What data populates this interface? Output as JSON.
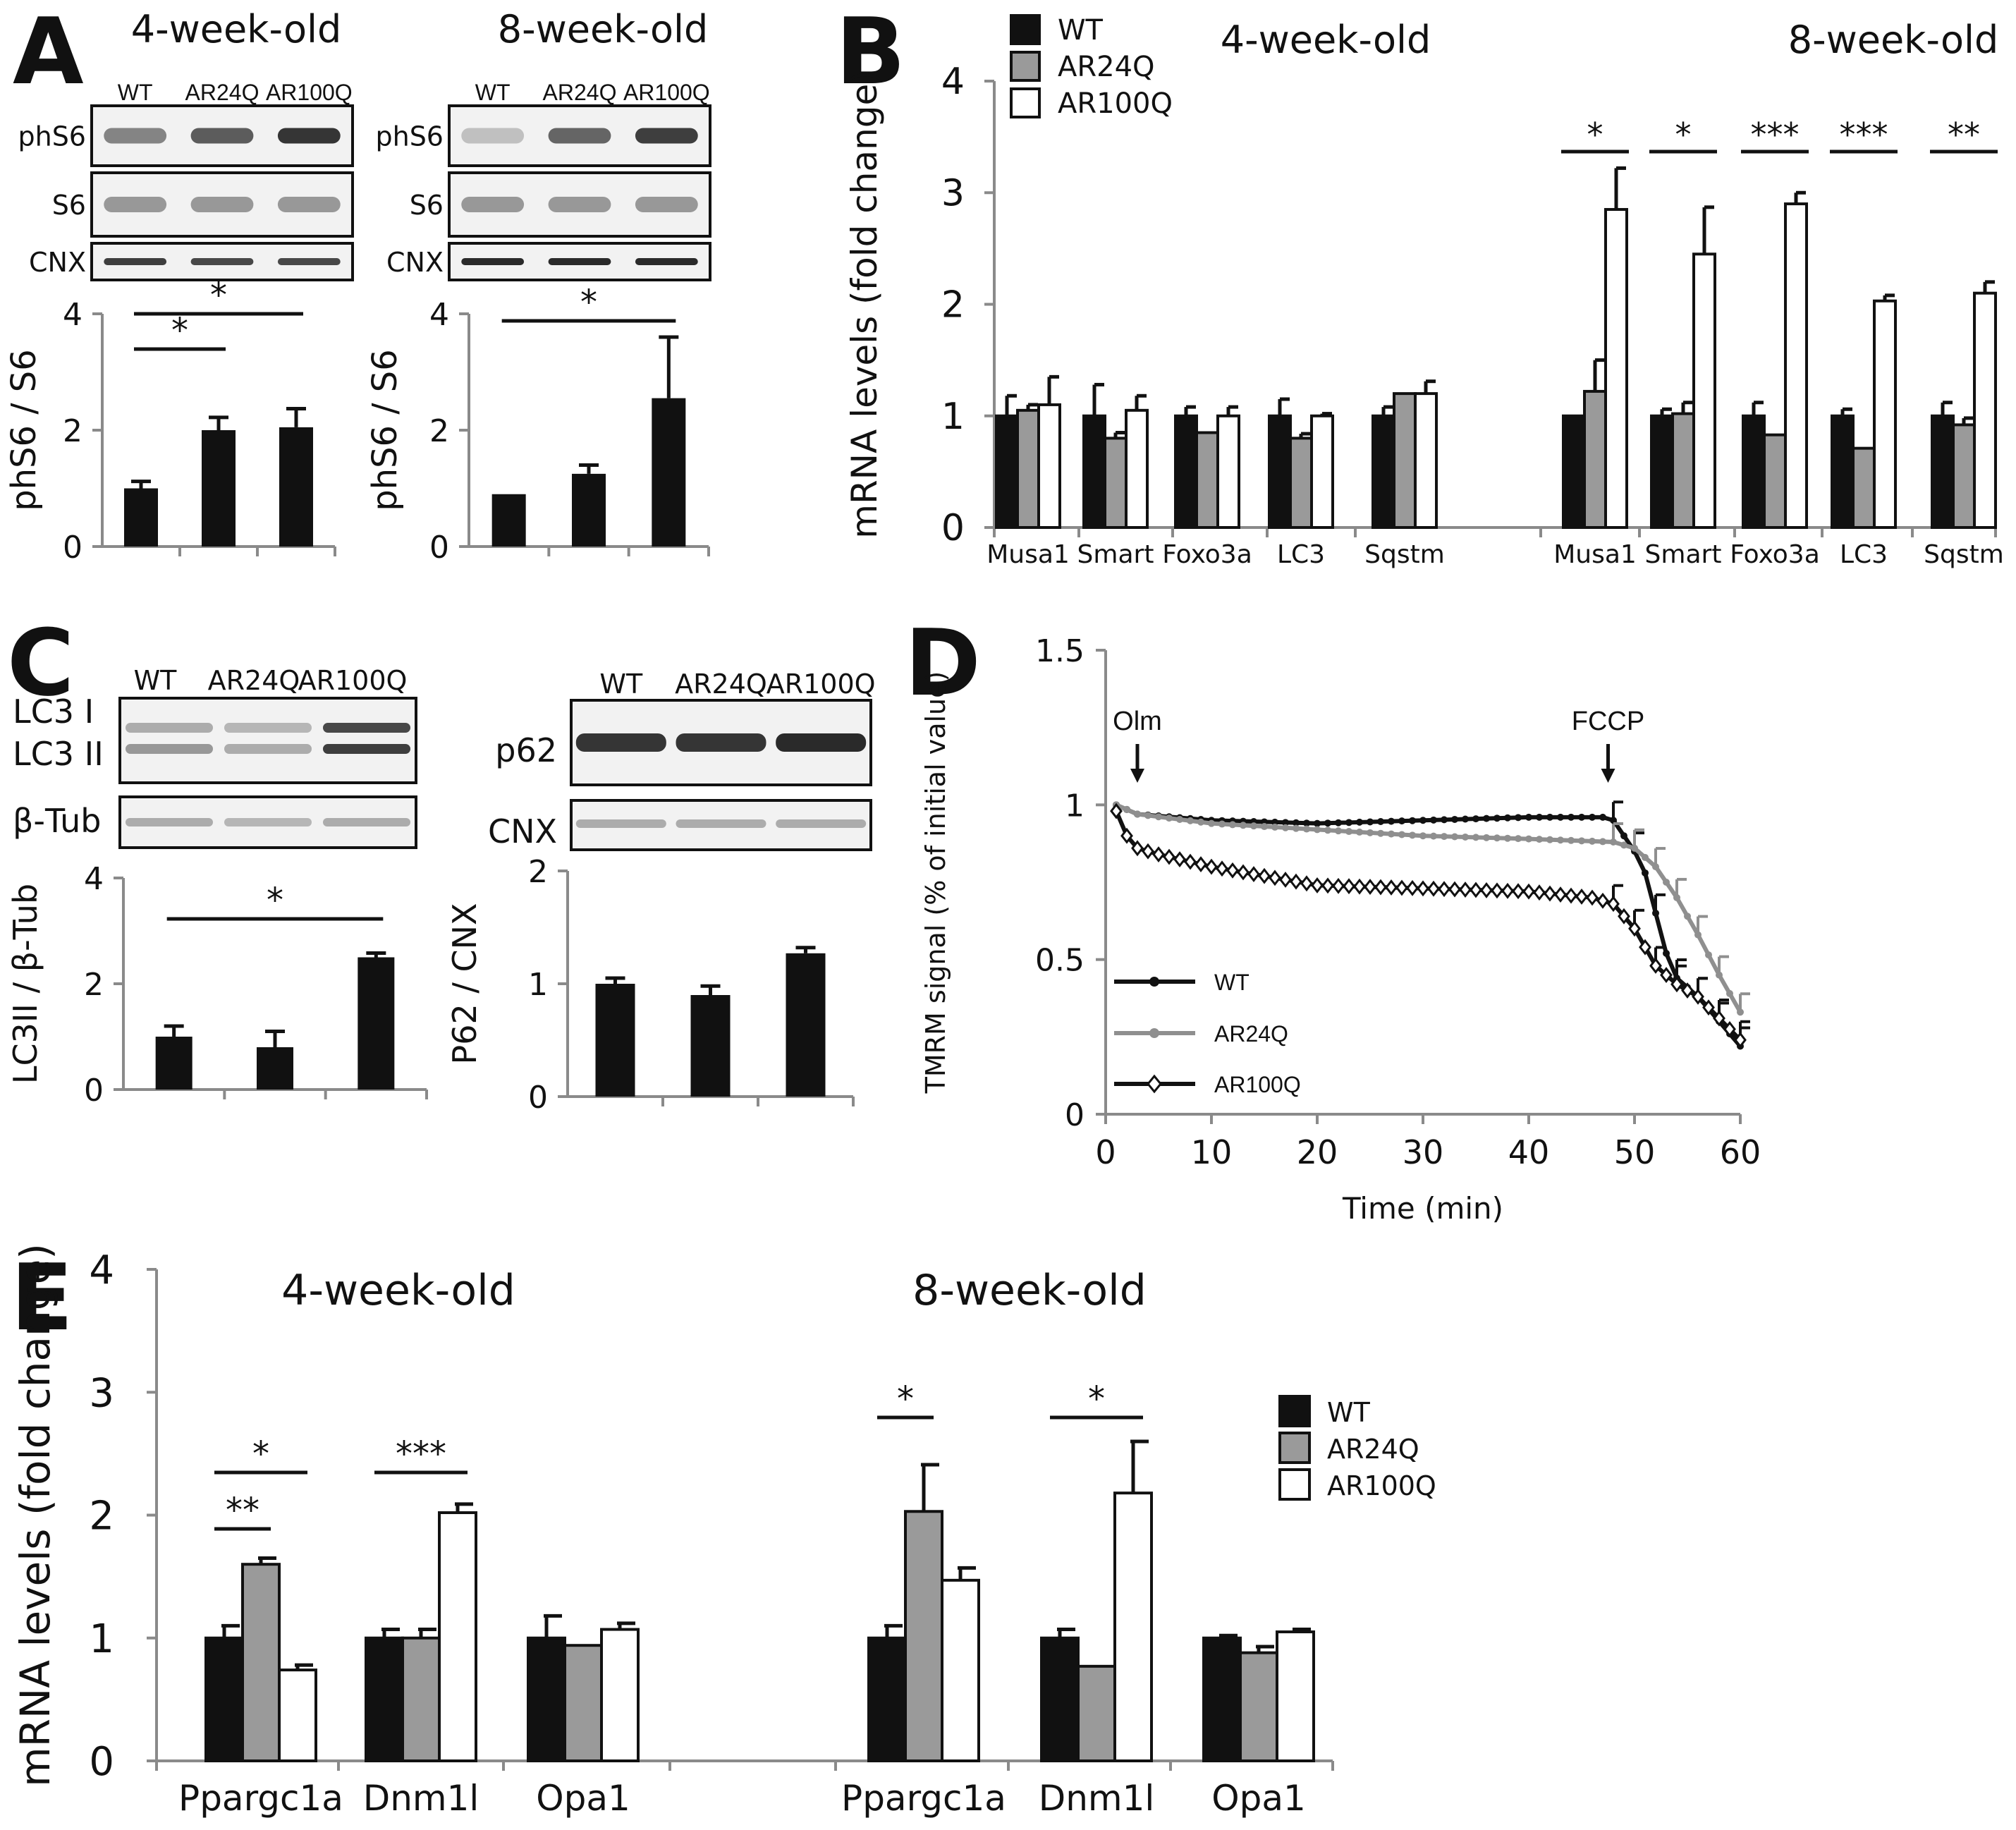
{
  "colors": {
    "wt": "#111111",
    "ar24q": "#9a9a9a",
    "ar100q": "#ffffff",
    "axis": "#8a8a8a",
    "band": "#2a2a2a"
  },
  "groups": [
    "WT",
    "AR24Q",
    "AR100Q"
  ],
  "panelA": {
    "letter": "A",
    "blot_rows": [
      "phS6",
      "S6",
      "CNX"
    ],
    "left": {
      "title": "4-week-old",
      "lanes": [
        "WT",
        "AR24Q",
        "AR100Q"
      ],
      "band_intensity": {
        "phS6": [
          0.55,
          0.75,
          0.95
        ],
        "S6": [
          0.45,
          0.45,
          0.45
        ],
        "CNX": [
          0.9,
          0.85,
          0.85
        ]
      },
      "chart": {
        "ylabel": "phS6 / S6",
        "yticks": [
          "0",
          "2",
          "4"
        ],
        "ylim": [
          0,
          4
        ],
        "values": [
          1.0,
          2.0,
          2.05
        ],
        "errors": [
          0.12,
          0.22,
          0.32
        ],
        "sig": [
          {
            "label": "*",
            "from": 0,
            "to": 1
          },
          {
            "label": "*",
            "from": 0,
            "to": 2
          }
        ]
      }
    },
    "right": {
      "title": "8-week-old",
      "lanes": [
        "WT",
        "AR24Q",
        "AR100Q"
      ],
      "band_intensity": {
        "phS6": [
          0.25,
          0.7,
          0.9
        ],
        "S6": [
          0.45,
          0.45,
          0.45
        ],
        "CNX": [
          1.0,
          1.0,
          1.0
        ]
      },
      "chart": {
        "ylabel": "phS6 / S6",
        "yticks": [
          "0",
          "2",
          "4"
        ],
        "ylim": [
          0,
          4
        ],
        "values": [
          0.9,
          1.25,
          2.55
        ],
        "errors": [
          0.0,
          0.15,
          1.05
        ],
        "sig": [
          {
            "label": "*",
            "from": 0,
            "to": 2
          }
        ]
      }
    }
  },
  "panelB": {
    "letter": "B",
    "legend": [
      "WT",
      "AR24Q",
      "AR100Q"
    ],
    "group_titles": [
      "4-week-old",
      "8-week-old"
    ],
    "ylabel": "mRNA levels (fold change)",
    "yticks": [
      "0",
      "1",
      "2",
      "3",
      "4"
    ],
    "ylim": [
      0,
      4
    ],
    "categories": [
      "Musa1",
      "Smart",
      "Foxo3a",
      "LC3",
      "Sqstm",
      "Musa1",
      "Smart",
      "Foxo3a",
      "LC3",
      "Sqstm"
    ],
    "series": [
      {
        "name": "WT",
        "values": [
          1.0,
          1.0,
          1.0,
          1.0,
          1.0,
          1.0,
          1.0,
          1.0,
          1.0,
          1.0
        ],
        "errors": [
          0.18,
          0.28,
          0.08,
          0.15,
          0.08,
          0.0,
          0.06,
          0.12,
          0.06,
          0.12
        ]
      },
      {
        "name": "AR24Q",
        "values": [
          1.05,
          0.8,
          0.85,
          0.8,
          1.2,
          1.22,
          1.02,
          0.83,
          0.71,
          0.92
        ],
        "errors": [
          0.05,
          0.05,
          0.0,
          0.04,
          0.0,
          0.28,
          0.1,
          0.0,
          0.0,
          0.06
        ]
      },
      {
        "name": "AR100Q",
        "values": [
          1.1,
          1.05,
          1.0,
          1.0,
          1.2,
          2.85,
          2.45,
          2.9,
          2.03,
          2.1
        ],
        "errors": [
          0.25,
          0.13,
          0.08,
          0.02,
          0.11,
          0.37,
          0.42,
          0.1,
          0.05,
          0.1
        ]
      }
    ],
    "sig": [
      {
        "label": "*",
        "category": 5
      },
      {
        "label": "*",
        "category": 6
      },
      {
        "label": "***",
        "category": 7
      },
      {
        "label": "***",
        "category": 8
      },
      {
        "label": "**",
        "category": 9
      }
    ]
  },
  "panelC": {
    "letter": "C",
    "left": {
      "lanes": [
        "WT",
        "AR24Q",
        "AR100Q"
      ],
      "blot_labels": [
        "LC3 I",
        "LC3 II",
        "β-Tub"
      ],
      "chart": {
        "ylabel": "LC3II / β-Tub",
        "yticks": [
          "0",
          "2",
          "4"
        ],
        "ylim": [
          0,
          4
        ],
        "values": [
          1.0,
          0.8,
          2.5
        ],
        "errors": [
          0.2,
          0.3,
          0.08
        ],
        "sig": [
          {
            "label": "*",
            "from": 0,
            "to": 2
          }
        ]
      }
    },
    "right": {
      "lanes": [
        "WT",
        "AR24Q",
        "AR100Q"
      ],
      "blot_labels": [
        "p62",
        "CNX"
      ],
      "chart": {
        "ylabel": "P62 / CNX",
        "yticks": [
          "0",
          "1",
          "2"
        ],
        "ylim": [
          0,
          2
        ],
        "values": [
          1.0,
          0.9,
          1.27
        ],
        "errors": [
          0.05,
          0.08,
          0.05
        ],
        "sig": []
      }
    }
  },
  "panelD": {
    "letter": "D",
    "ylabel": "TMRM signal (% of initial value)",
    "xlabel": "Time (min)",
    "yticks": [
      "0",
      "0.5",
      "1",
      "1.5"
    ],
    "xticks": [
      "0",
      "10",
      "20",
      "30",
      "40",
      "50",
      "60"
    ],
    "xlim": [
      0,
      60
    ],
    "ylim": [
      0,
      1.5
    ],
    "annotations": [
      {
        "label": "Olm",
        "x": 3
      },
      {
        "label": "FCCP",
        "x": 47.5
      }
    ],
    "legend": [
      "WT",
      "AR24Q",
      "AR100Q"
    ],
    "series": [
      {
        "name": "WT",
        "points": [
          [
            1,
            1.0
          ],
          [
            3,
            0.97
          ],
          [
            10,
            0.95
          ],
          [
            20,
            0.94
          ],
          [
            30,
            0.95
          ],
          [
            40,
            0.96
          ],
          [
            47,
            0.96
          ],
          [
            48,
            0.95
          ],
          [
            49,
            0.9
          ],
          [
            50,
            0.85
          ],
          [
            51,
            0.78
          ],
          [
            52,
            0.65
          ],
          [
            53,
            0.52
          ],
          [
            54,
            0.44
          ],
          [
            56,
            0.38
          ],
          [
            58,
            0.3
          ],
          [
            60,
            0.22
          ]
        ]
      },
      {
        "name": "AR24Q",
        "points": [
          [
            1,
            1.0
          ],
          [
            3,
            0.97
          ],
          [
            10,
            0.94
          ],
          [
            20,
            0.92
          ],
          [
            30,
            0.9
          ],
          [
            40,
            0.89
          ],
          [
            48,
            0.88
          ],
          [
            50,
            0.86
          ],
          [
            52,
            0.8
          ],
          [
            54,
            0.7
          ],
          [
            56,
            0.58
          ],
          [
            58,
            0.45
          ],
          [
            60,
            0.33
          ]
        ]
      },
      {
        "name": "AR100Q",
        "points": [
          [
            1,
            0.98
          ],
          [
            2,
            0.9
          ],
          [
            3,
            0.86
          ],
          [
            5,
            0.84
          ],
          [
            10,
            0.8
          ],
          [
            15,
            0.77
          ],
          [
            20,
            0.74
          ],
          [
            30,
            0.73
          ],
          [
            40,
            0.72
          ],
          [
            46,
            0.7
          ],
          [
            48,
            0.68
          ],
          [
            50,
            0.6
          ],
          [
            52,
            0.48
          ],
          [
            54,
            0.42
          ],
          [
            56,
            0.38
          ],
          [
            58,
            0.31
          ],
          [
            60,
            0.24
          ]
        ]
      }
    ]
  },
  "panelE": {
    "letter": "E",
    "group_titles": [
      "4-week-old",
      "8-week-old"
    ],
    "ylabel": "mRNA levels (fold change)",
    "yticks": [
      "0",
      "1",
      "2",
      "3",
      "4"
    ],
    "ylim": [
      0,
      4
    ],
    "legend": [
      "WT",
      "AR24Q",
      "AR100Q"
    ],
    "categories": [
      "Ppargc1a",
      "Dnm1l",
      "Opa1",
      "Ppargc1a",
      "Dnm1l",
      "Opa1"
    ],
    "series": [
      {
        "name": "WT",
        "values": [
          1.0,
          1.0,
          1.0,
          1.0,
          1.0,
          1.0
        ],
        "errors": [
          0.1,
          0.07,
          0.18,
          0.1,
          0.07,
          0.02
        ]
      },
      {
        "name": "AR24Q",
        "values": [
          1.6,
          1.0,
          0.94,
          2.03,
          0.77,
          0.88
        ],
        "errors": [
          0.05,
          0.07,
          0.0,
          0.38,
          0.0,
          0.05
        ]
      },
      {
        "name": "AR100Q",
        "values": [
          0.74,
          2.02,
          1.07,
          1.47,
          2.18,
          1.05
        ],
        "errors": [
          0.04,
          0.07,
          0.05,
          0.1,
          0.42,
          0.02
        ]
      }
    ],
    "sig": [
      {
        "label": "**",
        "category": 0,
        "from": 0,
        "to": 1
      },
      {
        "label": "*",
        "category": 0,
        "from": 0,
        "to": 2
      },
      {
        "label": "***",
        "category": 1,
        "from": 0,
        "to": 2
      },
      {
        "label": "*",
        "category": 3,
        "from": 0,
        "to": 1
      },
      {
        "label": "*",
        "category": 4,
        "from": 0,
        "to": 2
      }
    ]
  },
  "chart_data": [
    {
      "type": "bar",
      "panel": "A (4-week-old)",
      "categories": [
        "WT",
        "AR24Q",
        "AR100Q"
      ],
      "values": [
        1.0,
        2.0,
        2.05
      ],
      "ylabel": "phS6 / S6",
      "ylim": [
        0,
        4
      ]
    },
    {
      "type": "bar",
      "panel": "A (8-week-old)",
      "categories": [
        "WT",
        "AR24Q",
        "AR100Q"
      ],
      "values": [
        0.9,
        1.25,
        2.55
      ],
      "ylabel": "phS6 / S6",
      "ylim": [
        0,
        4
      ]
    },
    {
      "type": "bar",
      "panel": "B",
      "categories": [
        "Musa1",
        "Smart",
        "Foxo3a",
        "LC3",
        "Sqstm",
        "Musa1",
        "Smart",
        "Foxo3a",
        "LC3",
        "Sqstm"
      ],
      "series": [
        {
          "name": "WT",
          "values": [
            1.0,
            1.0,
            1.0,
            1.0,
            1.0,
            1.0,
            1.0,
            1.0,
            1.0,
            1.0
          ]
        },
        {
          "name": "AR24Q",
          "values": [
            1.05,
            0.8,
            0.85,
            0.8,
            1.2,
            1.22,
            1.02,
            0.83,
            0.71,
            0.92
          ]
        },
        {
          "name": "AR100Q",
          "values": [
            1.1,
            1.05,
            1.0,
            1.0,
            1.2,
            2.85,
            2.45,
            2.9,
            2.03,
            2.1
          ]
        }
      ],
      "ylabel": "mRNA levels (fold change)",
      "ylim": [
        0,
        4
      ]
    },
    {
      "type": "bar",
      "panel": "C (LC3)",
      "categories": [
        "WT",
        "AR24Q",
        "AR100Q"
      ],
      "values": [
        1.0,
        0.8,
        2.5
      ],
      "ylabel": "LC3II / β-Tub",
      "ylim": [
        0,
        4
      ]
    },
    {
      "type": "bar",
      "panel": "C (p62)",
      "categories": [
        "WT",
        "AR24Q",
        "AR100Q"
      ],
      "values": [
        1.0,
        0.9,
        1.27
      ],
      "ylabel": "P62 / CNX",
      "ylim": [
        0,
        2
      ]
    },
    {
      "type": "line",
      "panel": "D",
      "xlabel": "Time (min)",
      "ylabel": "TMRM signal (% of initial value)",
      "xlim": [
        0,
        60
      ],
      "ylim": [
        0,
        1.5
      ],
      "series": [
        {
          "name": "WT",
          "x": [
            1,
            3,
            10,
            20,
            30,
            40,
            47,
            50,
            52,
            54,
            56,
            58,
            60
          ],
          "y": [
            1.0,
            0.97,
            0.95,
            0.94,
            0.95,
            0.96,
            0.96,
            0.85,
            0.65,
            0.44,
            0.38,
            0.3,
            0.22
          ]
        },
        {
          "name": "AR24Q",
          "x": [
            1,
            3,
            10,
            20,
            30,
            40,
            48,
            50,
            52,
            54,
            56,
            58,
            60
          ],
          "y": [
            1.0,
            0.97,
            0.94,
            0.92,
            0.9,
            0.89,
            0.88,
            0.86,
            0.8,
            0.7,
            0.58,
            0.45,
            0.33
          ]
        },
        {
          "name": "AR100Q",
          "x": [
            1,
            3,
            10,
            20,
            30,
            40,
            48,
            50,
            52,
            54,
            56,
            58,
            60
          ],
          "y": [
            0.98,
            0.86,
            0.8,
            0.74,
            0.73,
            0.72,
            0.68,
            0.6,
            0.48,
            0.42,
            0.38,
            0.31,
            0.24
          ]
        }
      ]
    },
    {
      "type": "bar",
      "panel": "E",
      "categories": [
        "Ppargc1a",
        "Dnm1l",
        "Opa1",
        "Ppargc1a",
        "Dnm1l",
        "Opa1"
      ],
      "series": [
        {
          "name": "WT",
          "values": [
            1.0,
            1.0,
            1.0,
            1.0,
            1.0,
            1.0
          ]
        },
        {
          "name": "AR24Q",
          "values": [
            1.6,
            1.0,
            0.94,
            2.03,
            0.77,
            0.88
          ]
        },
        {
          "name": "AR100Q",
          "values": [
            0.74,
            2.02,
            1.07,
            1.47,
            2.18,
            1.05
          ]
        }
      ],
      "ylabel": "mRNA levels (fold change)",
      "ylim": [
        0,
        4
      ]
    }
  ]
}
